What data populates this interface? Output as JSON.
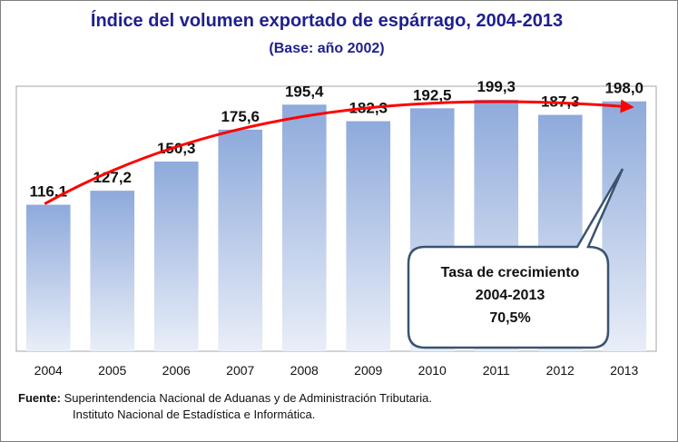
{
  "chart_data": {
    "type": "bar",
    "title": "Índice del volumen exportado de espárrago, 2004-2013",
    "subtitle": "(Base: año 2002)",
    "categories": [
      "2004",
      "2005",
      "2006",
      "2007",
      "2008",
      "2009",
      "2010",
      "2011",
      "2012",
      "2013"
    ],
    "values": [
      116.1,
      127.2,
      150.3,
      175.6,
      195.4,
      182.3,
      192.5,
      199.3,
      187.3,
      198.0
    ],
    "value_labels": [
      "116,1",
      "127,2",
      "150,3",
      "175,6",
      "195,4",
      "182,3",
      "192,5",
      "199,3",
      "187,3",
      "198,0"
    ],
    "ylim": [
      0,
      210
    ],
    "grid": false,
    "trend_arrow_color": "#ff0000",
    "bar_color_top": "#8eaadb",
    "bar_color_bottom": "#e9eef8"
  },
  "callout": {
    "line1": "Tasa de crecimiento",
    "line2": "2004-2013",
    "line3": "70,5%"
  },
  "source": {
    "label": "Fuente:",
    "line1": "Superintendencia Nacional de Aduanas y de Administración Tributaria.",
    "line2": "Instituto  Nacional de Estadística e Informática."
  }
}
